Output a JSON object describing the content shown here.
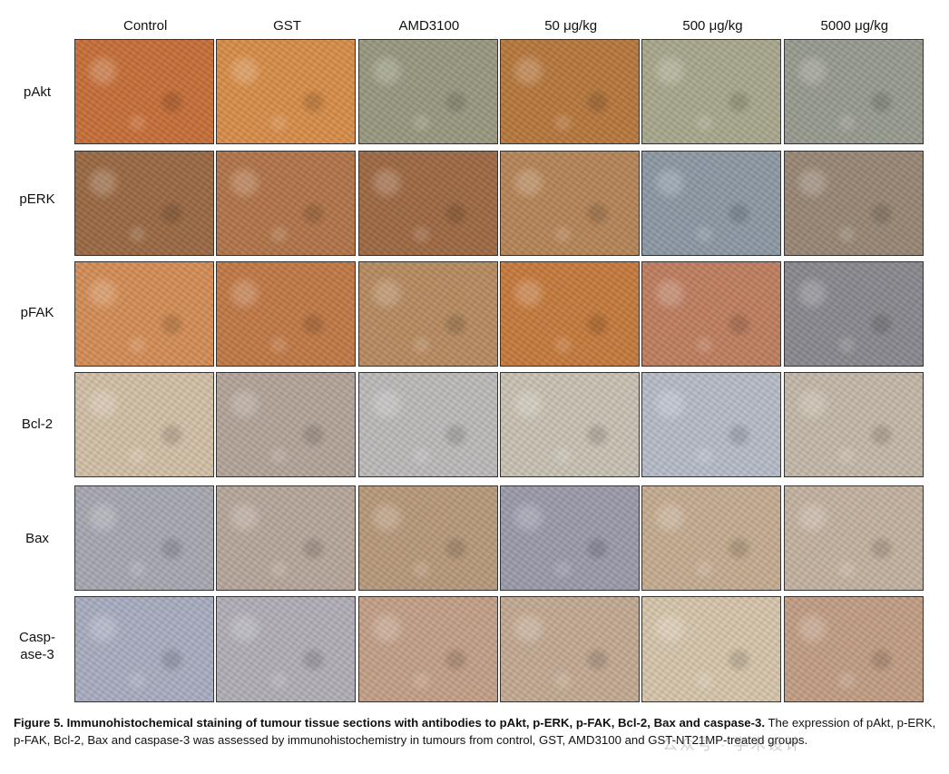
{
  "columns": [
    "Control",
    "GST",
    "AMD3100",
    "50 μg/kg",
    "500 μg/kg",
    "5000 μg/kg"
  ],
  "rows": [
    {
      "label": "pAkt",
      "colors": [
        "#c8703a",
        "#d88e4a",
        "#9a9a82",
        "#b8793f",
        "#aaa98e",
        "#999c90"
      ]
    },
    {
      "label": "pERK",
      "colors": [
        "#9c6a45",
        "#b3764b",
        "#a06a45",
        "#b78659",
        "#8e9aa6",
        "#9a8876"
      ]
    },
    {
      "label": "pFAK",
      "colors": [
        "#d58e57",
        "#c27a47",
        "#b88c62",
        "#c77b3e",
        "#c08061",
        "#8b8a90"
      ]
    },
    {
      "label": "Bcl-2",
      "colors": [
        "#d3c0a8",
        "#b4a59a",
        "#bdbbba",
        "#c9c2b4",
        "#b7bdc8",
        "#c5b9a9"
      ]
    },
    {
      "label": "Bax",
      "colors": [
        "#a8a9b2",
        "#b8a89c",
        "#b99b7c",
        "#9c9cac",
        "#c6ad92",
        "#c5b3a1"
      ]
    },
    {
      "label": "Casp-\nase-3",
      "colors": [
        "#a9aec1",
        "#b2afb8",
        "#c4a18a",
        "#c4ab94",
        "#d7c6ad",
        "#c39f86"
      ]
    }
  ],
  "caption": {
    "bold": "Figure 5. Immunohistochemical staining of tumour tissue sections with antibodies to pAkt, p-ERK, p-FAK, Bcl-2, Bax and caspase-3.",
    "rest": " The expression of pAkt, p-ERK, p-FAK, Bcl-2, Bax and caspase-3 was assessed by immunohistochemistry in tumours from control, GST, AMD3100 and GST-NT21MP-treated groups."
  },
  "highlight_color": "#1a22e0",
  "watermark": "公众号 · 学术设计"
}
